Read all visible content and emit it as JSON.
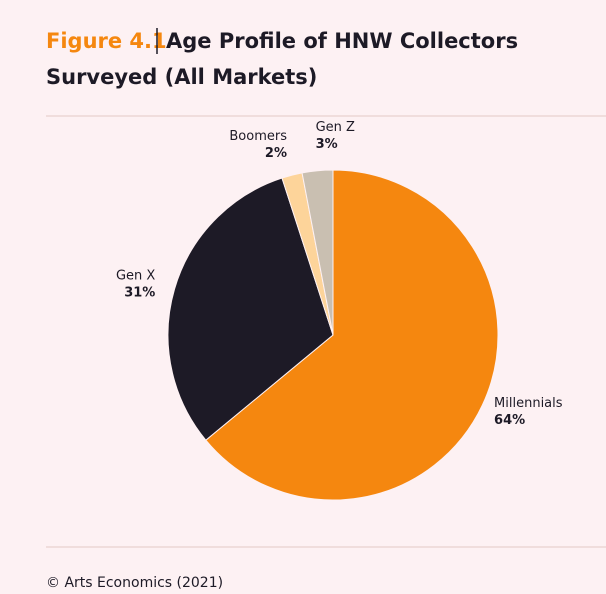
{
  "chart_data": {
    "type": "pie",
    "title_prefix": "Figure 4.1",
    "title": "Age Profile of HNW Collectors Surveyed (All Markets)",
    "categories": [
      "Millennials",
      "Gen X",
      "Boomers",
      "Gen Z"
    ],
    "values": [
      64,
      31,
      2,
      3
    ],
    "value_labels": [
      "64%",
      "31%",
      "2%",
      "3%"
    ],
    "colors": [
      "#f5870f",
      "#1d1a26",
      "#fdd49a",
      "#c9bfb1"
    ],
    "source": "© Arts Economics (2021)"
  }
}
